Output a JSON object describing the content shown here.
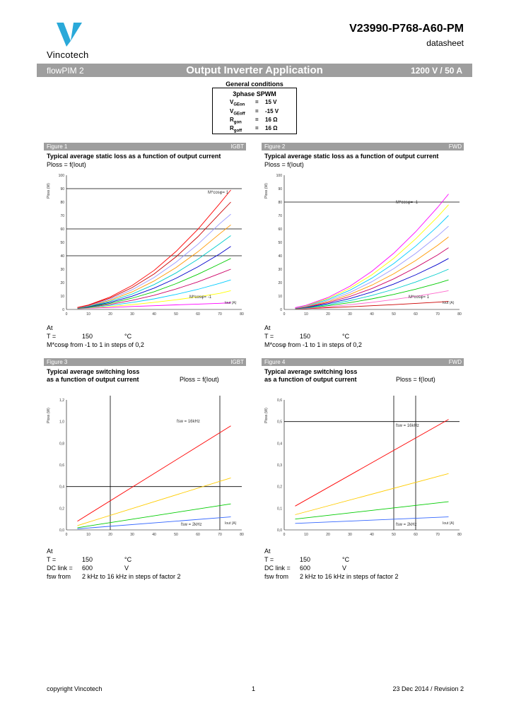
{
  "header": {
    "brand": "Vincotech",
    "doc_number": "V23990-P768-A60-PM",
    "doc_type": "datasheet",
    "logo_color": "#2aa9d9"
  },
  "banner": {
    "left": "flowPIM 2",
    "center": "Output Inverter Application",
    "right": "1200 V / 50 A"
  },
  "general_conditions": {
    "title": "General conditions",
    "heading": "3phase SPWM",
    "rows": [
      {
        "p": "V",
        "sub": "GEon",
        "eq": "=",
        "val": "15 V"
      },
      {
        "p": "V",
        "sub": "GEoff",
        "eq": "=",
        "val": "-15 V"
      },
      {
        "p": "R",
        "sub": "gon",
        "eq": "=",
        "val": "16 Ω"
      },
      {
        "p": "R",
        "sub": "goff",
        "eq": "=",
        "val": "16 Ω"
      }
    ]
  },
  "figures": [
    {
      "label": "Figure 1",
      "tag": "IGBT",
      "title_lines": [
        "Typical average static loss as a function of output current",
        ""
      ],
      "formula": "Ploss = f(Iout)",
      "ylabel": "Ploss (W)",
      "xlabel": "Iout (A)",
      "curve_label_top": "M*cosφ= 1",
      "curve_label_bottom": "M*cosφ= -1",
      "notes": [
        {
          "k": "At",
          "v": "",
          "u": ""
        },
        {
          "k": "T =",
          "v": "150",
          "u": "°C"
        },
        {
          "k": "M*cosφ from -1 to 1 in steps of 0,2",
          "v": "",
          "u": ""
        }
      ]
    },
    {
      "label": "Figure 2",
      "tag": "FWD",
      "title_lines": [
        "Typical average static loss as a function of output current",
        ""
      ],
      "formula": "Ploss = f(Iout)",
      "ylabel": "Ploss (W)",
      "xlabel": "Iout (A)",
      "curve_label_top": "M*cosφ= -1",
      "curve_label_bottom": "M*cosφ= 1",
      "notes": [
        {
          "k": "At",
          "v": "",
          "u": ""
        },
        {
          "k": "T =",
          "v": "150",
          "u": "°C"
        },
        {
          "k": "M*cosφ from -1 to 1 in steps of 0,2",
          "v": "",
          "u": ""
        }
      ]
    },
    {
      "label": "Figure 3",
      "tag": "IGBT",
      "title_lines": [
        "Typical average switching loss",
        "as a function of output current"
      ],
      "formula": "Ploss = f(Iout)",
      "ylabel": "Ploss (W)",
      "xlabel": "Iout (A)",
      "curve_label_top": "fsw = 16kHz",
      "curve_label_bottom": "fsw = 2kHz",
      "notes": [
        {
          "k": "At",
          "v": "",
          "u": ""
        },
        {
          "k": "T =",
          "v": "150",
          "u": "°C"
        },
        {
          "k": "DC link =",
          "v": "600",
          "u": "V"
        },
        {
          "k": "fsw from",
          "v": "2 kHz to 16 kHz in steps of factor 2",
          "u": ""
        }
      ]
    },
    {
      "label": "Figure 4",
      "tag": "FWD",
      "title_lines": [
        "Typical average switching loss",
        "as a function of output current"
      ],
      "formula": "Ploss = f(Iout)",
      "ylabel": "Ploss (W)",
      "xlabel": "Iout (A)",
      "curve_label_top": "fsw = 16kHz",
      "curve_label_bottom": "fsw = 2kHz",
      "notes": [
        {
          "k": "At",
          "v": "",
          "u": ""
        },
        {
          "k": "T =",
          "v": "150",
          "u": "°C"
        },
        {
          "k": "DC link =",
          "v": "600",
          "u": "V"
        },
        {
          "k": "fsw from",
          "v": "2 kHz to 16 kHz in steps of factor 2",
          "u": ""
        }
      ]
    }
  ],
  "chart_data": [
    {
      "type": "line",
      "x_ticks": [
        0,
        10,
        20,
        30,
        40,
        50,
        60,
        70,
        80
      ],
      "y_ticks": [
        0,
        10,
        20,
        30,
        40,
        50,
        60,
        70,
        80,
        90,
        100
      ],
      "xlim": [
        0,
        80
      ],
      "ylim": [
        0,
        100
      ],
      "hlines": [
        40,
        60,
        90
      ],
      "x": [
        5,
        10,
        20,
        30,
        40,
        50,
        60,
        70,
        75
      ],
      "colors": [
        "#ff00ff",
        "#ffff00",
        "#00ccff",
        "#cc0066",
        "#00cc00",
        "#0000cc",
        "#00cccc",
        "#ff9900",
        "#9999ff",
        "#cc0000",
        "#ff0000"
      ],
      "series": [
        {
          "values": [
            0.5,
            0.9,
            1.5,
            2.2,
            2.8,
            3.4,
            4.0,
            4.6,
            5.0
          ]
        },
        {
          "values": [
            0.6,
            1.1,
            2.2,
            3.6,
            5.3,
            7.2,
            9.4,
            12.0,
            14.0
          ]
        },
        {
          "values": [
            0.7,
            1.3,
            3.0,
            5.2,
            7.9,
            11.2,
            15.0,
            19.5,
            22.0
          ]
        },
        {
          "values": [
            0.8,
            1.6,
            3.8,
            6.8,
            10.6,
            15.2,
            20.6,
            26.8,
            30.0
          ]
        },
        {
          "values": [
            0.9,
            1.8,
            4.6,
            8.4,
            13.2,
            19.2,
            26.2,
            34.0,
            38.0
          ]
        },
        {
          "values": [
            1.0,
            2.1,
            5.3,
            9.9,
            15.9,
            23.2,
            31.8,
            41.5,
            47.0
          ]
        },
        {
          "values": [
            1.1,
            2.3,
            6.1,
            11.5,
            18.5,
            27.2,
            37.4,
            49.0,
            55.0
          ]
        },
        {
          "values": [
            1.2,
            2.6,
            6.9,
            13.1,
            21.2,
            31.2,
            43.0,
            56.5,
            63.0
          ]
        },
        {
          "values": [
            1.3,
            2.8,
            7.7,
            14.7,
            23.8,
            35.2,
            48.6,
            64.0,
            71.0
          ]
        },
        {
          "values": [
            1.4,
            3.1,
            8.5,
            16.3,
            26.5,
            39.2,
            54.2,
            71.5,
            80.0
          ]
        },
        {
          "values": [
            1.5,
            3.3,
            9.3,
            17.9,
            29.1,
            43.2,
            59.8,
            79.0,
            89.0
          ]
        }
      ]
    },
    {
      "type": "line",
      "x_ticks": [
        0,
        10,
        20,
        30,
        40,
        50,
        60,
        70,
        80
      ],
      "y_ticks": [
        0,
        10,
        20,
        30,
        40,
        50,
        60,
        70,
        80,
        90,
        100
      ],
      "xlim": [
        0,
        80
      ],
      "ylim": [
        0,
        100
      ],
      "hlines": [
        80
      ],
      "x": [
        5,
        10,
        20,
        30,
        40,
        50,
        60,
        70,
        75
      ],
      "colors": [
        "#cc0000",
        "#ff66cc",
        "#00cc00",
        "#00cccc",
        "#0000cc",
        "#cc0066",
        "#ff9900",
        "#9999ff",
        "#00ccff",
        "#ffff00",
        "#ff00ff"
      ],
      "series": [
        {
          "values": [
            0.3,
            0.6,
            1.3,
            2.0,
            2.8,
            3.6,
            4.5,
            5.4,
            6.0
          ]
        },
        {
          "values": [
            0.4,
            0.8,
            2.0,
            3.5,
            5.3,
            7.4,
            9.8,
            12.5,
            14.0
          ]
        },
        {
          "values": [
            0.5,
            1.1,
            2.8,
            5.1,
            7.9,
            11.2,
            15.1,
            19.5,
            22.0
          ]
        },
        {
          "values": [
            0.6,
            1.3,
            3.5,
            6.6,
            10.4,
            15.0,
            20.4,
            26.6,
            30.0
          ]
        },
        {
          "values": [
            0.7,
            1.6,
            4.3,
            8.1,
            13.0,
            18.9,
            25.8,
            33.6,
            38.0
          ]
        },
        {
          "values": [
            0.8,
            1.8,
            5.1,
            9.7,
            15.6,
            22.8,
            31.2,
            40.6,
            46.0
          ]
        },
        {
          "values": [
            0.9,
            2.1,
            5.8,
            11.2,
            18.1,
            26.6,
            36.5,
            47.8,
            54.0
          ]
        },
        {
          "values": [
            1.0,
            2.3,
            6.6,
            12.7,
            20.7,
            30.4,
            41.8,
            54.8,
            62.0
          ]
        },
        {
          "values": [
            1.1,
            2.6,
            7.4,
            14.3,
            23.3,
            34.2,
            47.2,
            61.9,
            70.0
          ]
        },
        {
          "values": [
            1.2,
            2.8,
            8.1,
            15.8,
            25.8,
            38.1,
            52.6,
            69.0,
            78.0
          ]
        },
        {
          "values": [
            1.3,
            3.1,
            8.9,
            17.3,
            28.4,
            41.9,
            57.9,
            76.0,
            86.0
          ]
        }
      ]
    },
    {
      "type": "line",
      "x_ticks": [
        0,
        10,
        20,
        30,
        40,
        50,
        60,
        70,
        80
      ],
      "y_ticks": [
        0,
        0.2,
        0.4,
        0.6,
        0.8,
        1,
        1.2
      ],
      "y_tick_labels": [
        "0,0",
        "0,2",
        "0,4",
        "0,6",
        "0,8",
        "1,0",
        "1,2"
      ],
      "xlim": [
        0,
        80
      ],
      "ylim": [
        0,
        1.2
      ],
      "hlines": [
        0.4
      ],
      "vlines": [
        20,
        70
      ],
      "x": [
        5,
        75
      ],
      "colors": [
        "#3366ff",
        "#00cc00",
        "#ffcc00",
        "#ff0000"
      ],
      "series": [
        {
          "values": [
            0.01,
            0.12
          ]
        },
        {
          "values": [
            0.02,
            0.24
          ]
        },
        {
          "values": [
            0.04,
            0.48
          ]
        },
        {
          "values": [
            0.08,
            0.96
          ]
        }
      ]
    },
    {
      "type": "line",
      "x_ticks": [
        0,
        10,
        20,
        30,
        40,
        50,
        60,
        70,
        80
      ],
      "y_ticks": [
        0,
        0.1,
        0.2,
        0.3,
        0.4,
        0.5,
        0.6
      ],
      "y_tick_labels": [
        "0,0",
        "0,1",
        "0,2",
        "0,3",
        "0,4",
        "0,5",
        "0,6"
      ],
      "xlim": [
        0,
        80
      ],
      "ylim": [
        0,
        0.6
      ],
      "hlines": [
        0.5
      ],
      "vlines": [
        50,
        60
      ],
      "x": [
        5,
        75
      ],
      "colors": [
        "#3366ff",
        "#00cc00",
        "#ffcc00",
        "#ff0000"
      ],
      "series": [
        {
          "values": [
            0.03,
            0.06
          ]
        },
        {
          "values": [
            0.05,
            0.13
          ]
        },
        {
          "values": [
            0.07,
            0.26
          ]
        },
        {
          "values": [
            0.11,
            0.51
          ]
        }
      ]
    }
  ],
  "footer": {
    "left": "copyright Vincotech",
    "center": "1",
    "right": "23 Dec 2014 / Revision 2"
  }
}
